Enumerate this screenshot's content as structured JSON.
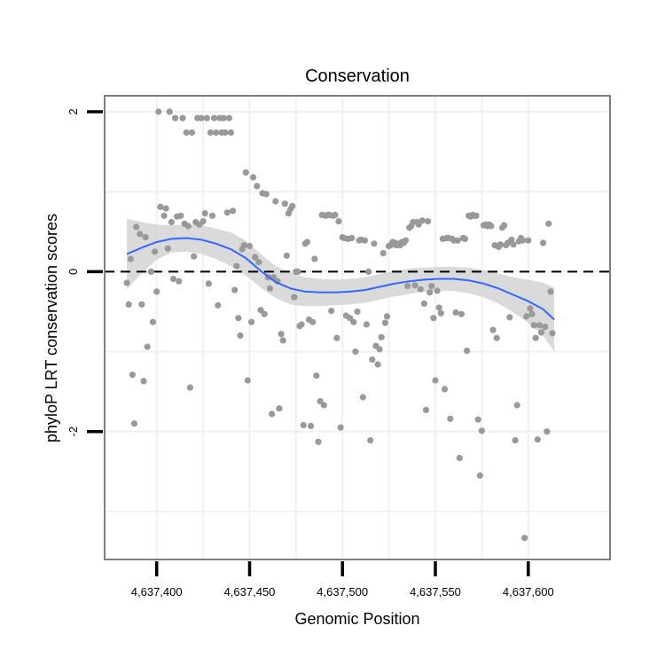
{
  "chart_data": {
    "type": "scatter",
    "title": "Conservation",
    "xlabel": "Genomic Position",
    "ylabel": "phyloP LRT conservation scores",
    "xlim": [
      4637372,
      4637644
    ],
    "ylim": [
      -3.6,
      2.2
    ],
    "x_ticks": [
      4637400,
      4637450,
      4637500,
      4637550,
      4637600
    ],
    "x_tick_labels": [
      "4,637,400",
      "4,637,450",
      "4,637,500",
      "4,637,550",
      "4,637,600"
    ],
    "y_ticks": [
      2,
      0,
      -2
    ],
    "y_tick_labels": [
      "2",
      "0",
      "-2"
    ],
    "reference_line": {
      "y": 0,
      "style": "dashed"
    },
    "colors": {
      "points": "#999999",
      "smooth": "#3366ff",
      "ribbon": "#d4d4d4",
      "panel_border": "#7f7f7f",
      "grid": "#f0f0f0"
    },
    "points": [
      [
        4637384,
        -0.14
      ],
      [
        4637385,
        -0.41
      ],
      [
        4637386,
        0.16
      ],
      [
        4637387,
        -1.29
      ],
      [
        4637388,
        -1.9
      ],
      [
        4637389,
        0.56
      ],
      [
        4637391,
        0.47
      ],
      [
        4637392,
        -0.41
      ],
      [
        4637393,
        -1.37
      ],
      [
        4637394,
        0.43
      ],
      [
        4637395,
        -0.94
      ],
      [
        4637397,
        0.0
      ],
      [
        4637398,
        -0.63
      ],
      [
        4637399,
        0.25
      ],
      [
        4637400,
        -0.25
      ],
      [
        4637401,
        2.0
      ],
      [
        4637402,
        0.81
      ],
      [
        4637404,
        0.7
      ],
      [
        4637405,
        0.79
      ],
      [
        4637406,
        0.29
      ],
      [
        4637407,
        2.0
      ],
      [
        4637408,
        0.62
      ],
      [
        4637409,
        -0.09
      ],
      [
        4637410,
        1.92
      ],
      [
        4637411,
        0.69
      ],
      [
        4637412,
        -0.12
      ],
      [
        4637413,
        0.7
      ],
      [
        4637414,
        1.92
      ],
      [
        4637415,
        0.6
      ],
      [
        4637416,
        1.74
      ],
      [
        4637417,
        0.57
      ],
      [
        4637418,
        -1.45
      ],
      [
        4637419,
        1.74
      ],
      [
        4637420,
        0.19
      ],
      [
        4637421,
        0.62
      ],
      [
        4637422,
        1.92
      ],
      [
        4637423,
        0.59
      ],
      [
        4637424,
        1.92
      ],
      [
        4637425,
        0.63
      ],
      [
        4637426,
        0.73
      ],
      [
        4637427,
        1.92
      ],
      [
        4637428,
        -0.15
      ],
      [
        4637429,
        1.74
      ],
      [
        4637430,
        0.7
      ],
      [
        4637431,
        1.92
      ],
      [
        4637432,
        1.74
      ],
      [
        4637433,
        -0.42
      ],
      [
        4637434,
        1.92
      ],
      [
        4637435,
        1.74
      ],
      [
        4637436,
        1.92
      ],
      [
        4637437,
        1.74
      ],
      [
        4637438,
        0.74
      ],
      [
        4637439,
        1.92
      ],
      [
        4637440,
        1.74
      ],
      [
        4637441,
        0.76
      ],
      [
        4637442,
        -0.23
      ],
      [
        4637443,
        0.07
      ],
      [
        4637444,
        -0.58
      ],
      [
        4637445,
        -0.8
      ],
      [
        4637446,
        0.28
      ],
      [
        4637447,
        0.33
      ],
      [
        4637448,
        1.24
      ],
      [
        4637449,
        -1.36
      ],
      [
        4637450,
        0.32
      ],
      [
        4637451,
        -0.63
      ],
      [
        4637452,
        1.18
      ],
      [
        4637453,
        0.18
      ],
      [
        4637454,
        1.07
      ],
      [
        4637455,
        0.12
      ],
      [
        4637456,
        -0.48
      ],
      [
        4637457,
        0.98
      ],
      [
        4637458,
        -0.53
      ],
      [
        4637459,
        0.97
      ],
      [
        4637460,
        -0.07
      ],
      [
        4637461,
        -0.21
      ],
      [
        4637462,
        -1.78
      ],
      [
        4637463,
        -0.07
      ],
      [
        4637464,
        0.88
      ],
      [
        4637465,
        -0.12
      ],
      [
        4637466,
        -1.71
      ],
      [
        4637467,
        -0.78
      ],
      [
        4637468,
        -0.86
      ],
      [
        4637469,
        0.85
      ],
      [
        4637470,
        0.2
      ],
      [
        4637471,
        0.73
      ],
      [
        4637472,
        0.78
      ],
      [
        4637473,
        0.82
      ],
      [
        4637474,
        -0.32
      ],
      [
        4637475,
        0.0
      ],
      [
        4637476,
        0.0
      ],
      [
        4637477,
        -0.68
      ],
      [
        4637478,
        -0.66
      ],
      [
        4637479,
        -1.92
      ],
      [
        4637480,
        0.35
      ],
      [
        4637481,
        0.37
      ],
      [
        4637482,
        -0.6
      ],
      [
        4637483,
        -1.93
      ],
      [
        4637484,
        -0.63
      ],
      [
        4637485,
        0.16
      ],
      [
        4637486,
        -1.3
      ],
      [
        4637487,
        -2.13
      ],
      [
        4637488,
        -1.62
      ],
      [
        4637489,
        0.71
      ],
      [
        4637490,
        -1.67
      ],
      [
        4637491,
        0.7
      ],
      [
        4637492,
        0.71
      ],
      [
        4637493,
        0.71
      ],
      [
        4637494,
        -0.49
      ],
      [
        4637495,
        0.7
      ],
      [
        4637496,
        0.71
      ],
      [
        4637497,
        -0.83
      ],
      [
        4637498,
        0.63
      ],
      [
        4637499,
        -1.95
      ],
      [
        4637500,
        0.43
      ],
      [
        4637501,
        0.42
      ],
      [
        4637502,
        -0.55
      ],
      [
        4637503,
        0.41
      ],
      [
        4637504,
        -0.58
      ],
      [
        4637505,
        0.42
      ],
      [
        4637506,
        -0.63
      ],
      [
        4637507,
        -1.0
      ],
      [
        4637508,
        -0.5
      ],
      [
        4637509,
        0.39
      ],
      [
        4637510,
        0.4
      ],
      [
        4637511,
        -1.57
      ],
      [
        4637512,
        0.39
      ],
      [
        4637513,
        -0.66
      ],
      [
        4637514,
        0.0
      ],
      [
        4637515,
        -2.11
      ],
      [
        4637516,
        -1.1
      ],
      [
        4637517,
        0.35
      ],
      [
        4637518,
        -0.93
      ],
      [
        4637519,
        -1.16
      ],
      [
        4637520,
        -0.97
      ],
      [
        4637521,
        -0.82
      ],
      [
        4637522,
        0.23
      ],
      [
        4637523,
        -0.64
      ],
      [
        4637524,
        -0.56
      ],
      [
        4637525,
        0.32
      ],
      [
        4637526,
        0.33
      ],
      [
        4637527,
        0.37
      ],
      [
        4637528,
        0.36
      ],
      [
        4637529,
        0.33
      ],
      [
        4637530,
        0.35
      ],
      [
        4637531,
        0.33
      ],
      [
        4637532,
        0.37
      ],
      [
        4637533,
        0.36
      ],
      [
        4637534,
        0.39
      ],
      [
        4637535,
        -0.18
      ],
      [
        4637536,
        0.55
      ],
      [
        4637537,
        0.57
      ],
      [
        4637538,
        0.62
      ],
      [
        4637539,
        -0.17
      ],
      [
        4637540,
        0.62
      ],
      [
        4637541,
        0.59
      ],
      [
        4637542,
        -0.22
      ],
      [
        4637543,
        0.64
      ],
      [
        4637544,
        -0.4
      ],
      [
        4637545,
        -1.73
      ],
      [
        4637546,
        0.63
      ],
      [
        4637547,
        -0.26
      ],
      [
        4637548,
        -0.18
      ],
      [
        4637549,
        -0.58
      ],
      [
        4637550,
        -1.36
      ],
      [
        4637551,
        -0.24
      ],
      [
        4637552,
        -0.45
      ],
      [
        4637553,
        -0.52
      ],
      [
        4637554,
        0.41
      ],
      [
        4637555,
        -1.47
      ],
      [
        4637556,
        0.42
      ],
      [
        4637557,
        0.42
      ],
      [
        4637558,
        -1.84
      ],
      [
        4637559,
        0.41
      ],
      [
        4637560,
        0.39
      ],
      [
        4637561,
        -0.51
      ],
      [
        4637562,
        0.39
      ],
      [
        4637563,
        -2.33
      ],
      [
        4637564,
        -0.53
      ],
      [
        4637565,
        0.42
      ],
      [
        4637566,
        0.41
      ],
      [
        4637567,
        -0.99
      ],
      [
        4637568,
        0.7
      ],
      [
        4637569,
        0.69
      ],
      [
        4637570,
        0.71
      ],
      [
        4637571,
        0.7
      ],
      [
        4637572,
        0.7
      ],
      [
        4637573,
        -1.85
      ],
      [
        4637574,
        -2.55
      ],
      [
        4637575,
        -1.99
      ],
      [
        4637576,
        0.58
      ],
      [
        4637577,
        0.59
      ],
      [
        4637578,
        0.57
      ],
      [
        4637579,
        0.59
      ],
      [
        4637580,
        0.57
      ],
      [
        4637581,
        -0.73
      ],
      [
        4637582,
        0.33
      ],
      [
        4637583,
        -0.83
      ],
      [
        4637584,
        0.31
      ],
      [
        4637585,
        0.34
      ],
      [
        4637586,
        0.55
      ],
      [
        4637587,
        0.58
      ],
      [
        4637588,
        0.33
      ],
      [
        4637589,
        0.36
      ],
      [
        4637590,
        -0.57
      ],
      [
        4637591,
        0.4
      ],
      [
        4637592,
        0.34
      ],
      [
        4637593,
        -2.11
      ],
      [
        4637594,
        -1.67
      ],
      [
        4637595,
        0.38
      ],
      [
        4637596,
        0.42
      ],
      [
        4637597,
        0.39
      ],
      [
        4637598,
        -3.33
      ],
      [
        4637599,
        -0.56
      ],
      [
        4637600,
        0.39
      ],
      [
        4637601,
        -0.46
      ],
      [
        4637602,
        -0.53
      ],
      [
        4637603,
        -0.67
      ],
      [
        4637604,
        -0.83
      ],
      [
        4637605,
        -2.1
      ],
      [
        4637606,
        -0.67
      ],
      [
        4637607,
        -0.76
      ],
      [
        4637608,
        0.36
      ],
      [
        4637609,
        -0.69
      ],
      [
        4637610,
        -2.0
      ],
      [
        4637611,
        0.6
      ],
      [
        4637612,
        -0.25
      ],
      [
        4637613,
        -0.77
      ]
    ],
    "smooth": {
      "x": [
        4637384,
        4637392,
        4637400,
        4637408,
        4637416,
        4637424,
        4637432,
        4637440,
        4637448,
        4637456,
        4637464,
        4637472,
        4637480,
        4637488,
        4637496,
        4637504,
        4637512,
        4637520,
        4637528,
        4637536,
        4637544,
        4637552,
        4637560,
        4637568,
        4637576,
        4637584,
        4637592,
        4637600,
        4637608,
        4637614
      ],
      "y": [
        0.22,
        0.3,
        0.37,
        0.41,
        0.42,
        0.4,
        0.35,
        0.28,
        0.17,
        0.01,
        -0.13,
        -0.21,
        -0.25,
        -0.26,
        -0.26,
        -0.25,
        -0.23,
        -0.19,
        -0.15,
        -0.12,
        -0.1,
        -0.09,
        -0.09,
        -0.11,
        -0.15,
        -0.21,
        -0.29,
        -0.37,
        -0.47,
        -0.6
      ],
      "lower": [
        -0.22,
        -0.02,
        0.15,
        0.24,
        0.25,
        0.22,
        0.16,
        0.07,
        -0.05,
        -0.2,
        -0.33,
        -0.41,
        -0.43,
        -0.43,
        -0.42,
        -0.41,
        -0.39,
        -0.35,
        -0.31,
        -0.28,
        -0.25,
        -0.24,
        -0.24,
        -0.27,
        -0.32,
        -0.4,
        -0.51,
        -0.64,
        -0.8,
        -1.0
      ],
      "upper": [
        0.66,
        0.62,
        0.59,
        0.58,
        0.59,
        0.58,
        0.54,
        0.49,
        0.39,
        0.22,
        0.07,
        -0.01,
        -0.07,
        -0.09,
        -0.1,
        -0.09,
        -0.07,
        -0.03,
        0.01,
        0.04,
        0.05,
        0.06,
        0.06,
        0.05,
        0.02,
        -0.02,
        -0.07,
        -0.1,
        -0.14,
        -0.2
      ]
    }
  }
}
